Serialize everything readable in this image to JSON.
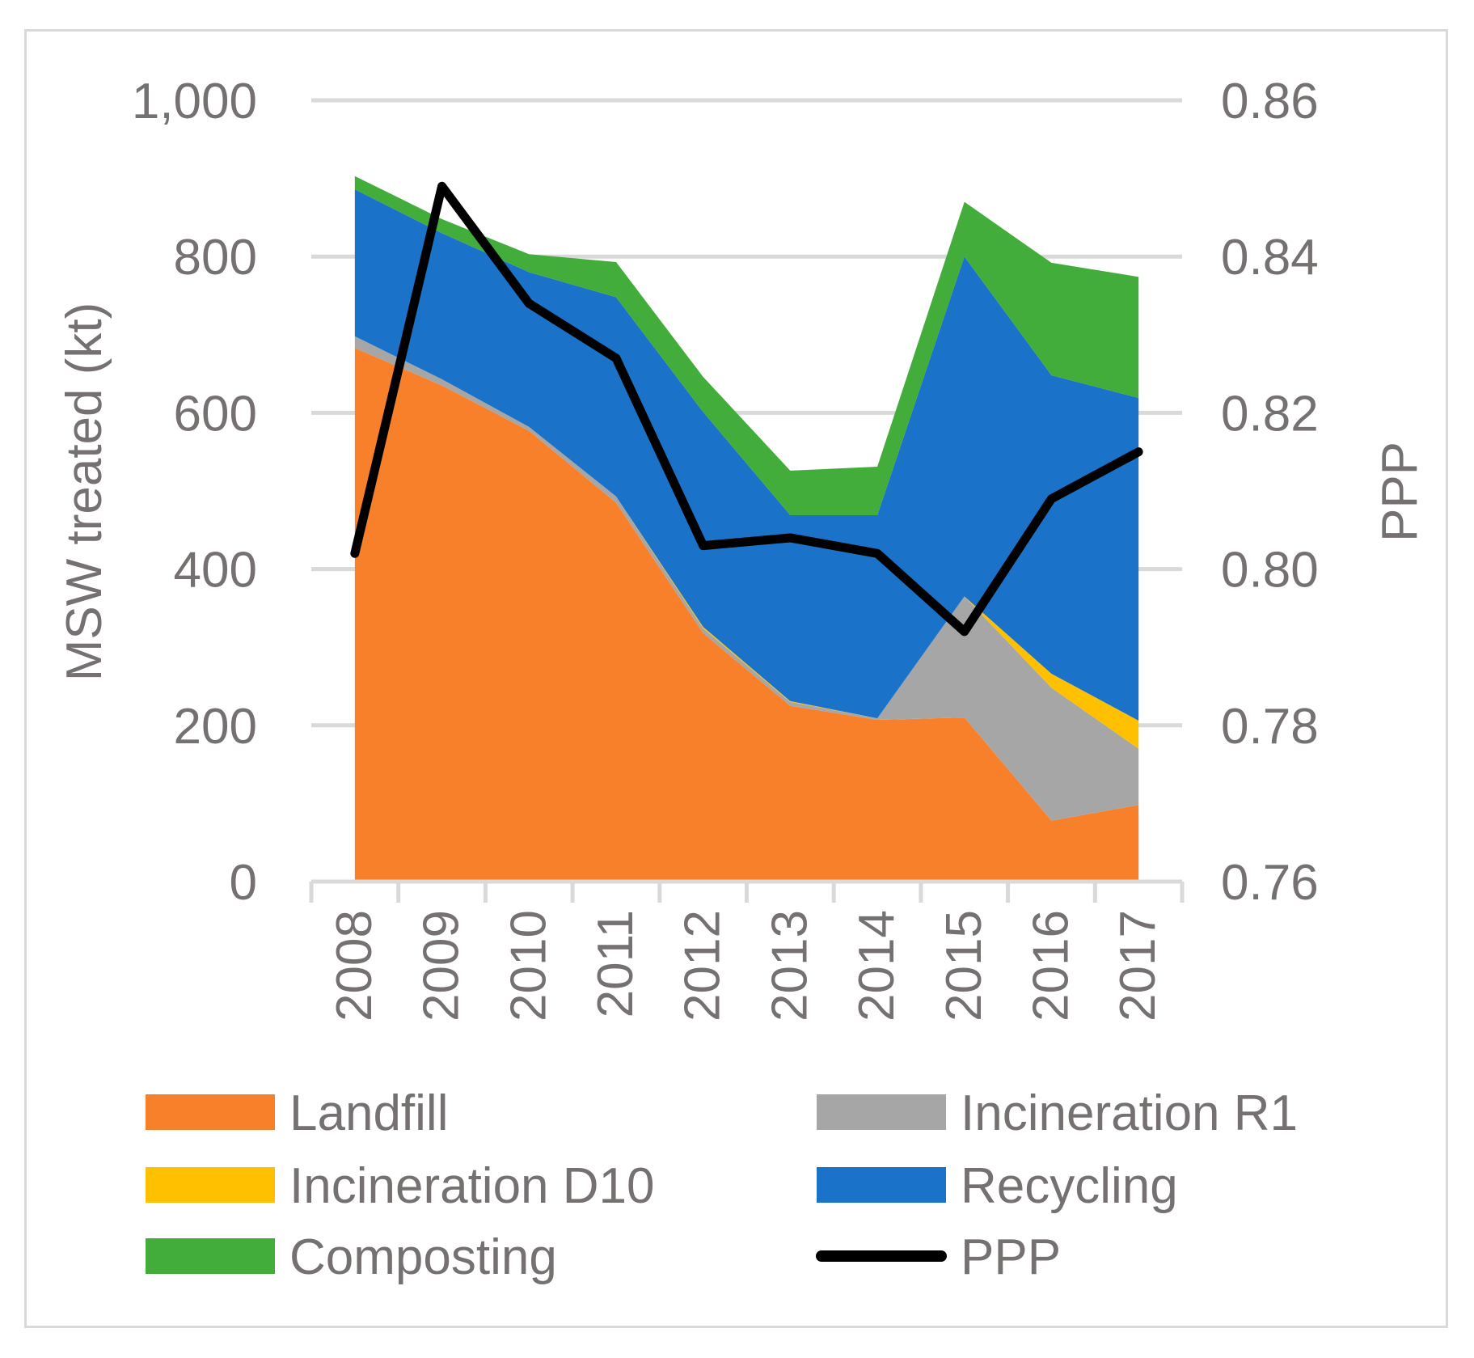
{
  "chart_data": {
    "type": "area",
    "stacked": true,
    "categories": [
      "2008",
      "2009",
      "2010",
      "2011",
      "2012",
      "2013",
      "2014",
      "2015",
      "2016",
      "2017"
    ],
    "series": [
      {
        "name": "Landfill",
        "color": "#f8802a",
        "values": [
          683,
          635,
          577,
          485,
          318,
          225,
          207,
          210,
          78,
          98
        ]
      },
      {
        "name": "Incineration R1",
        "color": "#a6a6a6",
        "values": [
          15,
          8,
          5,
          8,
          6,
          5,
          2,
          155,
          170,
          72
        ]
      },
      {
        "name": "Incineration D10",
        "color": "#ffc000",
        "values": [
          0,
          0,
          0,
          0,
          2,
          1,
          0,
          0,
          18,
          36
        ]
      },
      {
        "name": "Recycling",
        "color": "#1a73c8",
        "values": [
          188,
          187,
          198,
          255,
          275,
          238,
          260,
          435,
          382,
          413
        ]
      },
      {
        "name": "Composting",
        "color": "#43ad3b",
        "values": [
          17,
          18,
          23,
          45,
          45,
          57,
          62,
          70,
          144,
          155
        ]
      }
    ],
    "line": {
      "name": "PPP",
      "color": "#000000",
      "axis": "right",
      "values": [
        0.802,
        0.849,
        0.834,
        0.827,
        0.803,
        0.804,
        0.802,
        0.792,
        0.809,
        0.815
      ]
    },
    "left_axis": {
      "title": "MSW treated (kt)",
      "ylim": [
        0,
        1000
      ],
      "ticks": [
        "0",
        "200",
        "400",
        "600",
        "800",
        "1,000"
      ]
    },
    "right_axis": {
      "title": "PPP",
      "ylim": [
        0.76,
        0.86
      ],
      "ticks": [
        "0.76",
        "0.78",
        "0.80",
        "0.82",
        "0.84",
        "0.86"
      ]
    },
    "legend": {
      "position": "bottom",
      "entries": [
        "Landfill",
        "Incineration R1",
        "Incineration D10",
        "Recycling",
        "Composting",
        "PPP"
      ]
    },
    "grid": true
  }
}
